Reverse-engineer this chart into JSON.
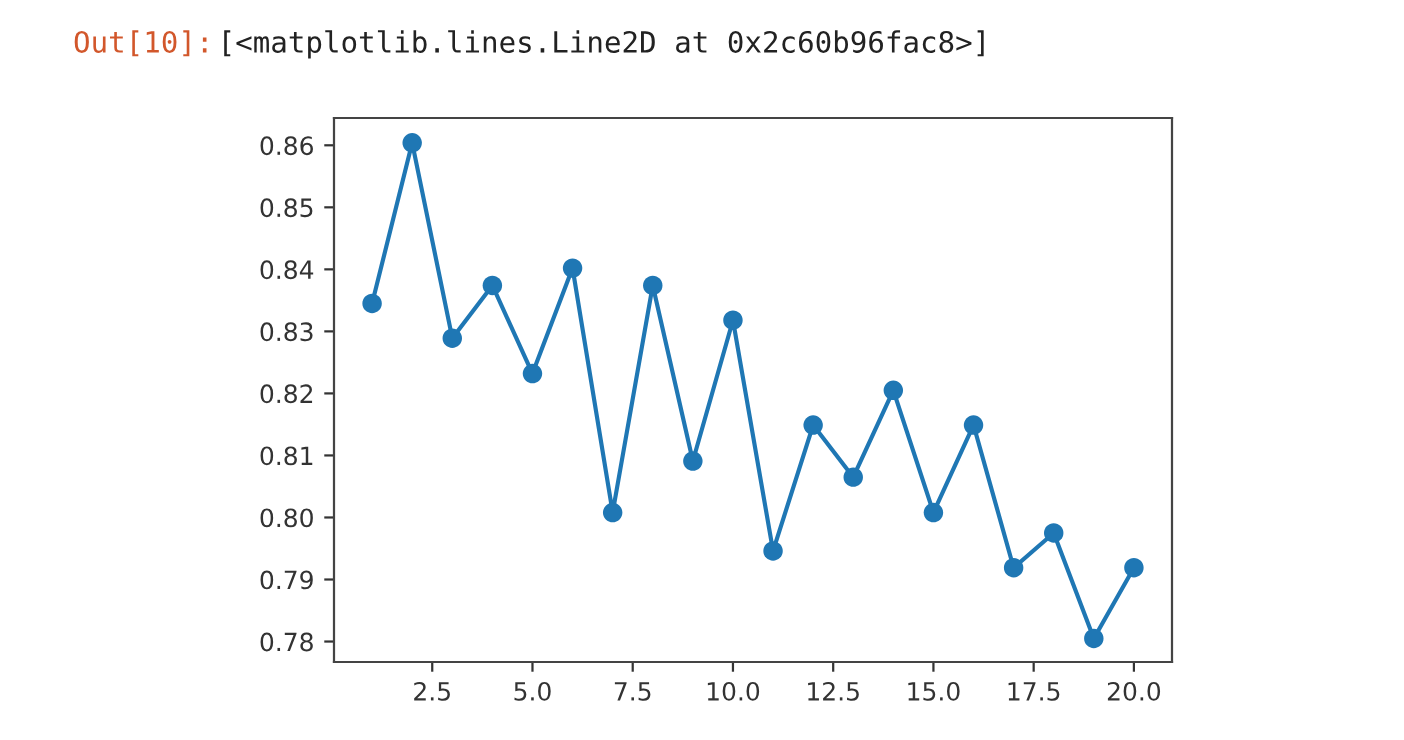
{
  "chart_data": {
    "type": "line",
    "annotations": [
      "Out[10]:",
      "[<matplotlib.lines.Line2D at 0x2c60b96fac8>]"
    ],
    "x": [
      1,
      2,
      3,
      4,
      5,
      6,
      7,
      8,
      9,
      10,
      11,
      12,
      13,
      14,
      15,
      16,
      17,
      18,
      19,
      20
    ],
    "series": [
      {
        "color": "#1f77b4",
        "values": [
          0.8345,
          0.8604,
          0.8289,
          0.8374,
          0.8232,
          0.8402,
          0.8008,
          0.8374,
          0.8091,
          0.8318,
          0.7946,
          0.8149,
          0.8065,
          0.8205,
          0.8008,
          0.8149,
          0.7919,
          0.7975,
          0.7805,
          0.7919
        ]
      }
    ],
    "xlim": [
      0.05,
      20.95
    ],
    "ylim": [
      0.7767,
      0.8644
    ],
    "xticks": [
      {
        "value": 2.5,
        "label": "2.5"
      },
      {
        "value": 5,
        "label": "5.0"
      },
      {
        "value": 7.5,
        "label": "7.5"
      },
      {
        "value": 10,
        "label": "10.0"
      },
      {
        "value": 12.5,
        "label": "12.5"
      },
      {
        "value": 15,
        "label": "15.0"
      },
      {
        "value": 17.5,
        "label": "17.5"
      },
      {
        "value": 20,
        "label": "20.0"
      }
    ],
    "yticks": [
      {
        "value": 0.78,
        "label": "0.78"
      },
      {
        "value": 0.79,
        "label": "0.79"
      },
      {
        "value": 0.8,
        "label": "0.80"
      },
      {
        "value": 0.81,
        "label": "0.81"
      },
      {
        "value": 0.82,
        "label": "0.82"
      },
      {
        "value": 0.83,
        "label": "0.83"
      },
      {
        "value": 0.84,
        "label": "0.84"
      },
      {
        "value": 0.85,
        "label": "0.85"
      },
      {
        "value": 0.86,
        "label": "0.86"
      }
    ],
    "marker": "circle",
    "line_style": "solid",
    "grid": false,
    "legend": false
  }
}
